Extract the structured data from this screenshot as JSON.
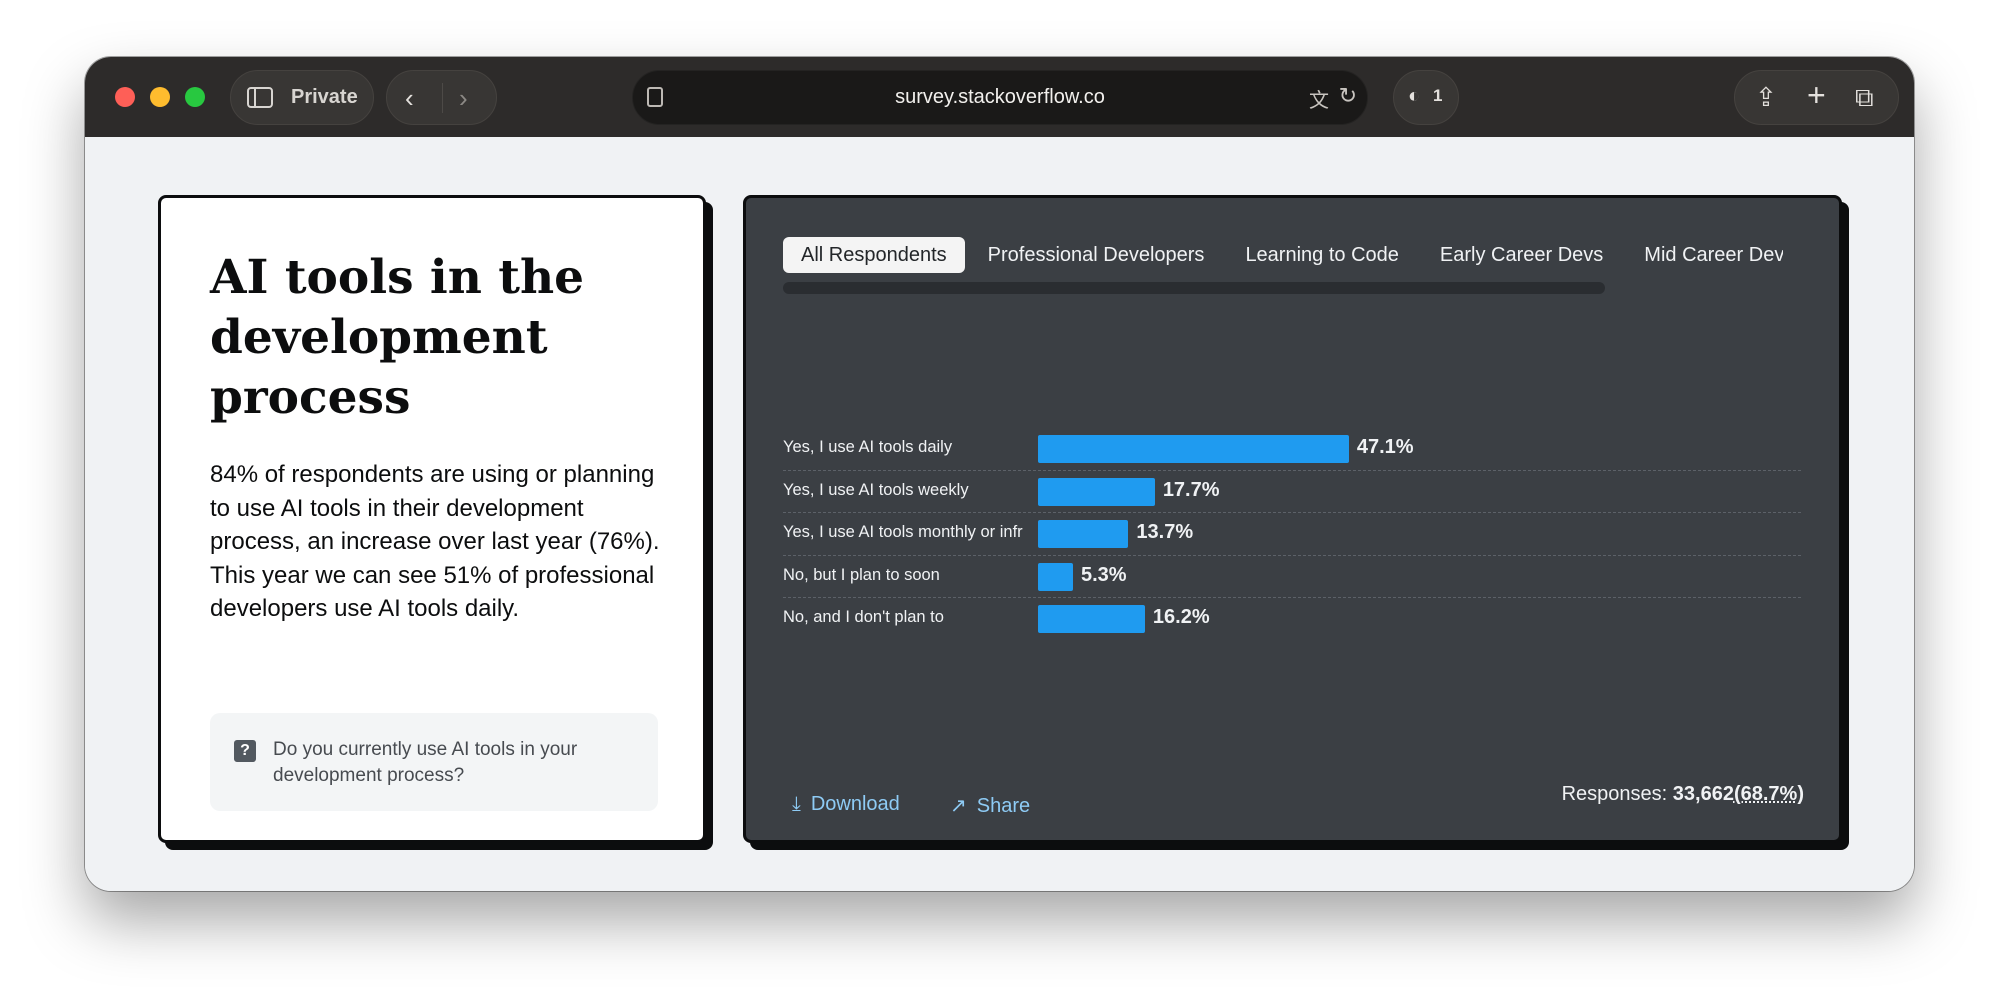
{
  "browser": {
    "private_label": "Private",
    "url": "survey.stackoverflow.co",
    "shield_count": "1",
    "icons": [
      "sidebar-icon",
      "back-chevron-icon",
      "forward-chevron-icon",
      "page-icon",
      "translate-icon",
      "reload-icon",
      "shield-icon",
      "share-icon",
      "new-tab-icon",
      "tabs-overview-icon"
    ]
  },
  "intro": {
    "title": "AI tools in the development process",
    "description": "84% of respondents are using or planning to use AI tools in their development process, an increase over last year (76%). This year we can see 51% of professional developers use AI tools daily.",
    "question": "Do you currently use AI tools in your development process?"
  },
  "tabs": [
    {
      "label": "All Respondents",
      "active": true
    },
    {
      "label": "Professional Developers",
      "active": false
    },
    {
      "label": "Learning to Code",
      "active": false
    },
    {
      "label": "Early Career Devs",
      "active": false
    },
    {
      "label": "Mid Career Devs",
      "active": false
    }
  ],
  "chart_data": {
    "type": "bar",
    "orientation": "horizontal",
    "categories": [
      "Yes, I use AI tools daily",
      "Yes, I use AI tools weekly",
      "Yes, I use AI tools monthly or infrequently",
      "No, but I plan to soon",
      "No, and I don't plan to"
    ],
    "values": [
      47.1,
      17.7,
      13.7,
      5.3,
      16.2
    ],
    "value_labels": [
      "47.1%",
      "17.7%",
      "13.7%",
      "5.3%",
      "16.2%"
    ],
    "bar_color": "#1f9bf0",
    "xlim": [
      0,
      100
    ]
  },
  "footer": {
    "download_label": "Download",
    "share_label": "Share",
    "responses_label": "Responses:",
    "responses_count": "33,662",
    "responses_pct": "(68.7%)"
  }
}
